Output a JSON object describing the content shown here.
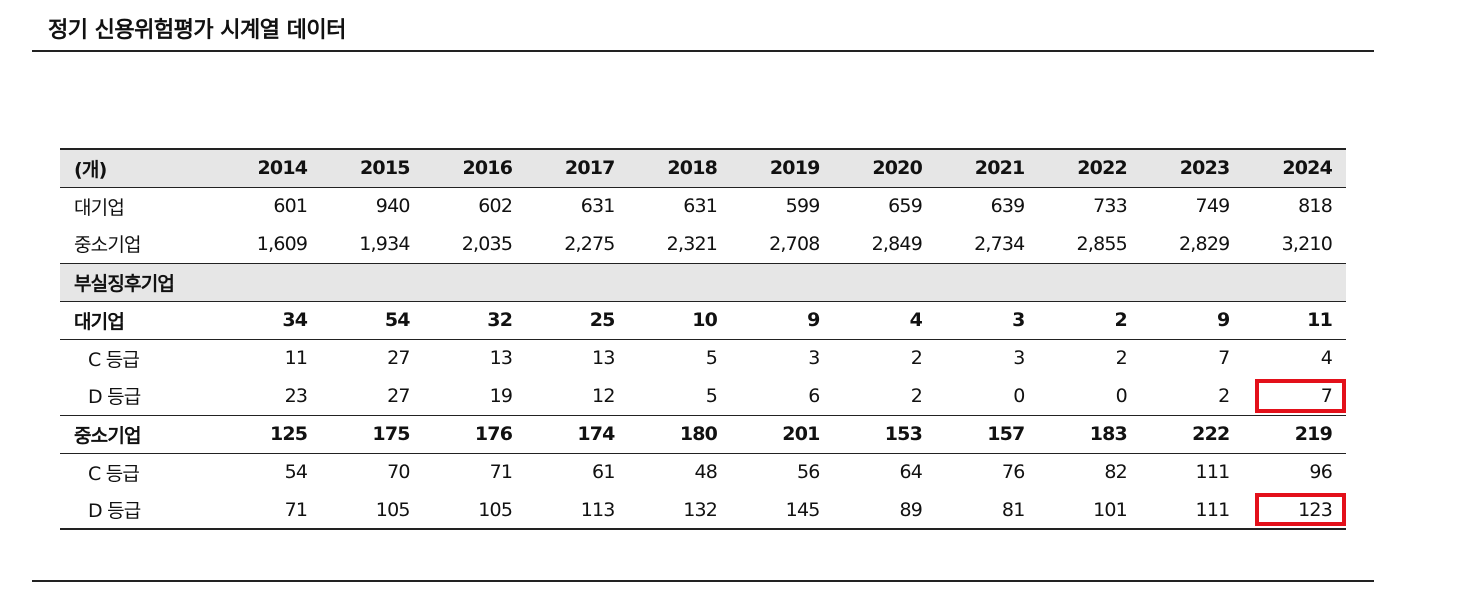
{
  "title": "정기 신용위험평가 시계열 데이터",
  "table": {
    "unit": "(개)",
    "years": [
      "2014",
      "2015",
      "2016",
      "2017",
      "2018",
      "2019",
      "2020",
      "2021",
      "2022",
      "2023",
      "2024"
    ],
    "large": {
      "label": "대기업",
      "values": [
        "601",
        "940",
        "602",
        "631",
        "631",
        "599",
        "659",
        "639",
        "733",
        "749",
        "818"
      ]
    },
    "sme": {
      "label": "중소기업",
      "values": [
        "1,609",
        "1,934",
        "2,035",
        "2,275",
        "2,321",
        "2,708",
        "2,849",
        "2,734",
        "2,855",
        "2,829",
        "3,210"
      ]
    },
    "section_label": "부실징후기업",
    "dist_large": {
      "label": "대기업",
      "values": [
        "34",
        "54",
        "32",
        "25",
        "10",
        "9",
        "4",
        "3",
        "2",
        "9",
        "11"
      ]
    },
    "dist_large_c": {
      "label": "C 등급",
      "values": [
        "11",
        "27",
        "13",
        "13",
        "5",
        "3",
        "2",
        "3",
        "2",
        "7",
        "4"
      ]
    },
    "dist_large_d": {
      "label": "D 등급",
      "values": [
        "23",
        "27",
        "19",
        "12",
        "5",
        "6",
        "2",
        "0",
        "0",
        "2",
        "7"
      ]
    },
    "dist_sme": {
      "label": "중소기업",
      "values": [
        "125",
        "175",
        "176",
        "174",
        "180",
        "201",
        "153",
        "157",
        "183",
        "222",
        "219"
      ]
    },
    "dist_sme_c": {
      "label": "C 등급",
      "values": [
        "54",
        "70",
        "71",
        "61",
        "48",
        "56",
        "64",
        "76",
        "82",
        "111",
        "96"
      ]
    },
    "dist_sme_d": {
      "label": "D 등급",
      "values": [
        "71",
        "105",
        "105",
        "113",
        "132",
        "145",
        "89",
        "81",
        "101",
        "111",
        "123"
      ]
    },
    "highlight_color": "#e3101a"
  }
}
